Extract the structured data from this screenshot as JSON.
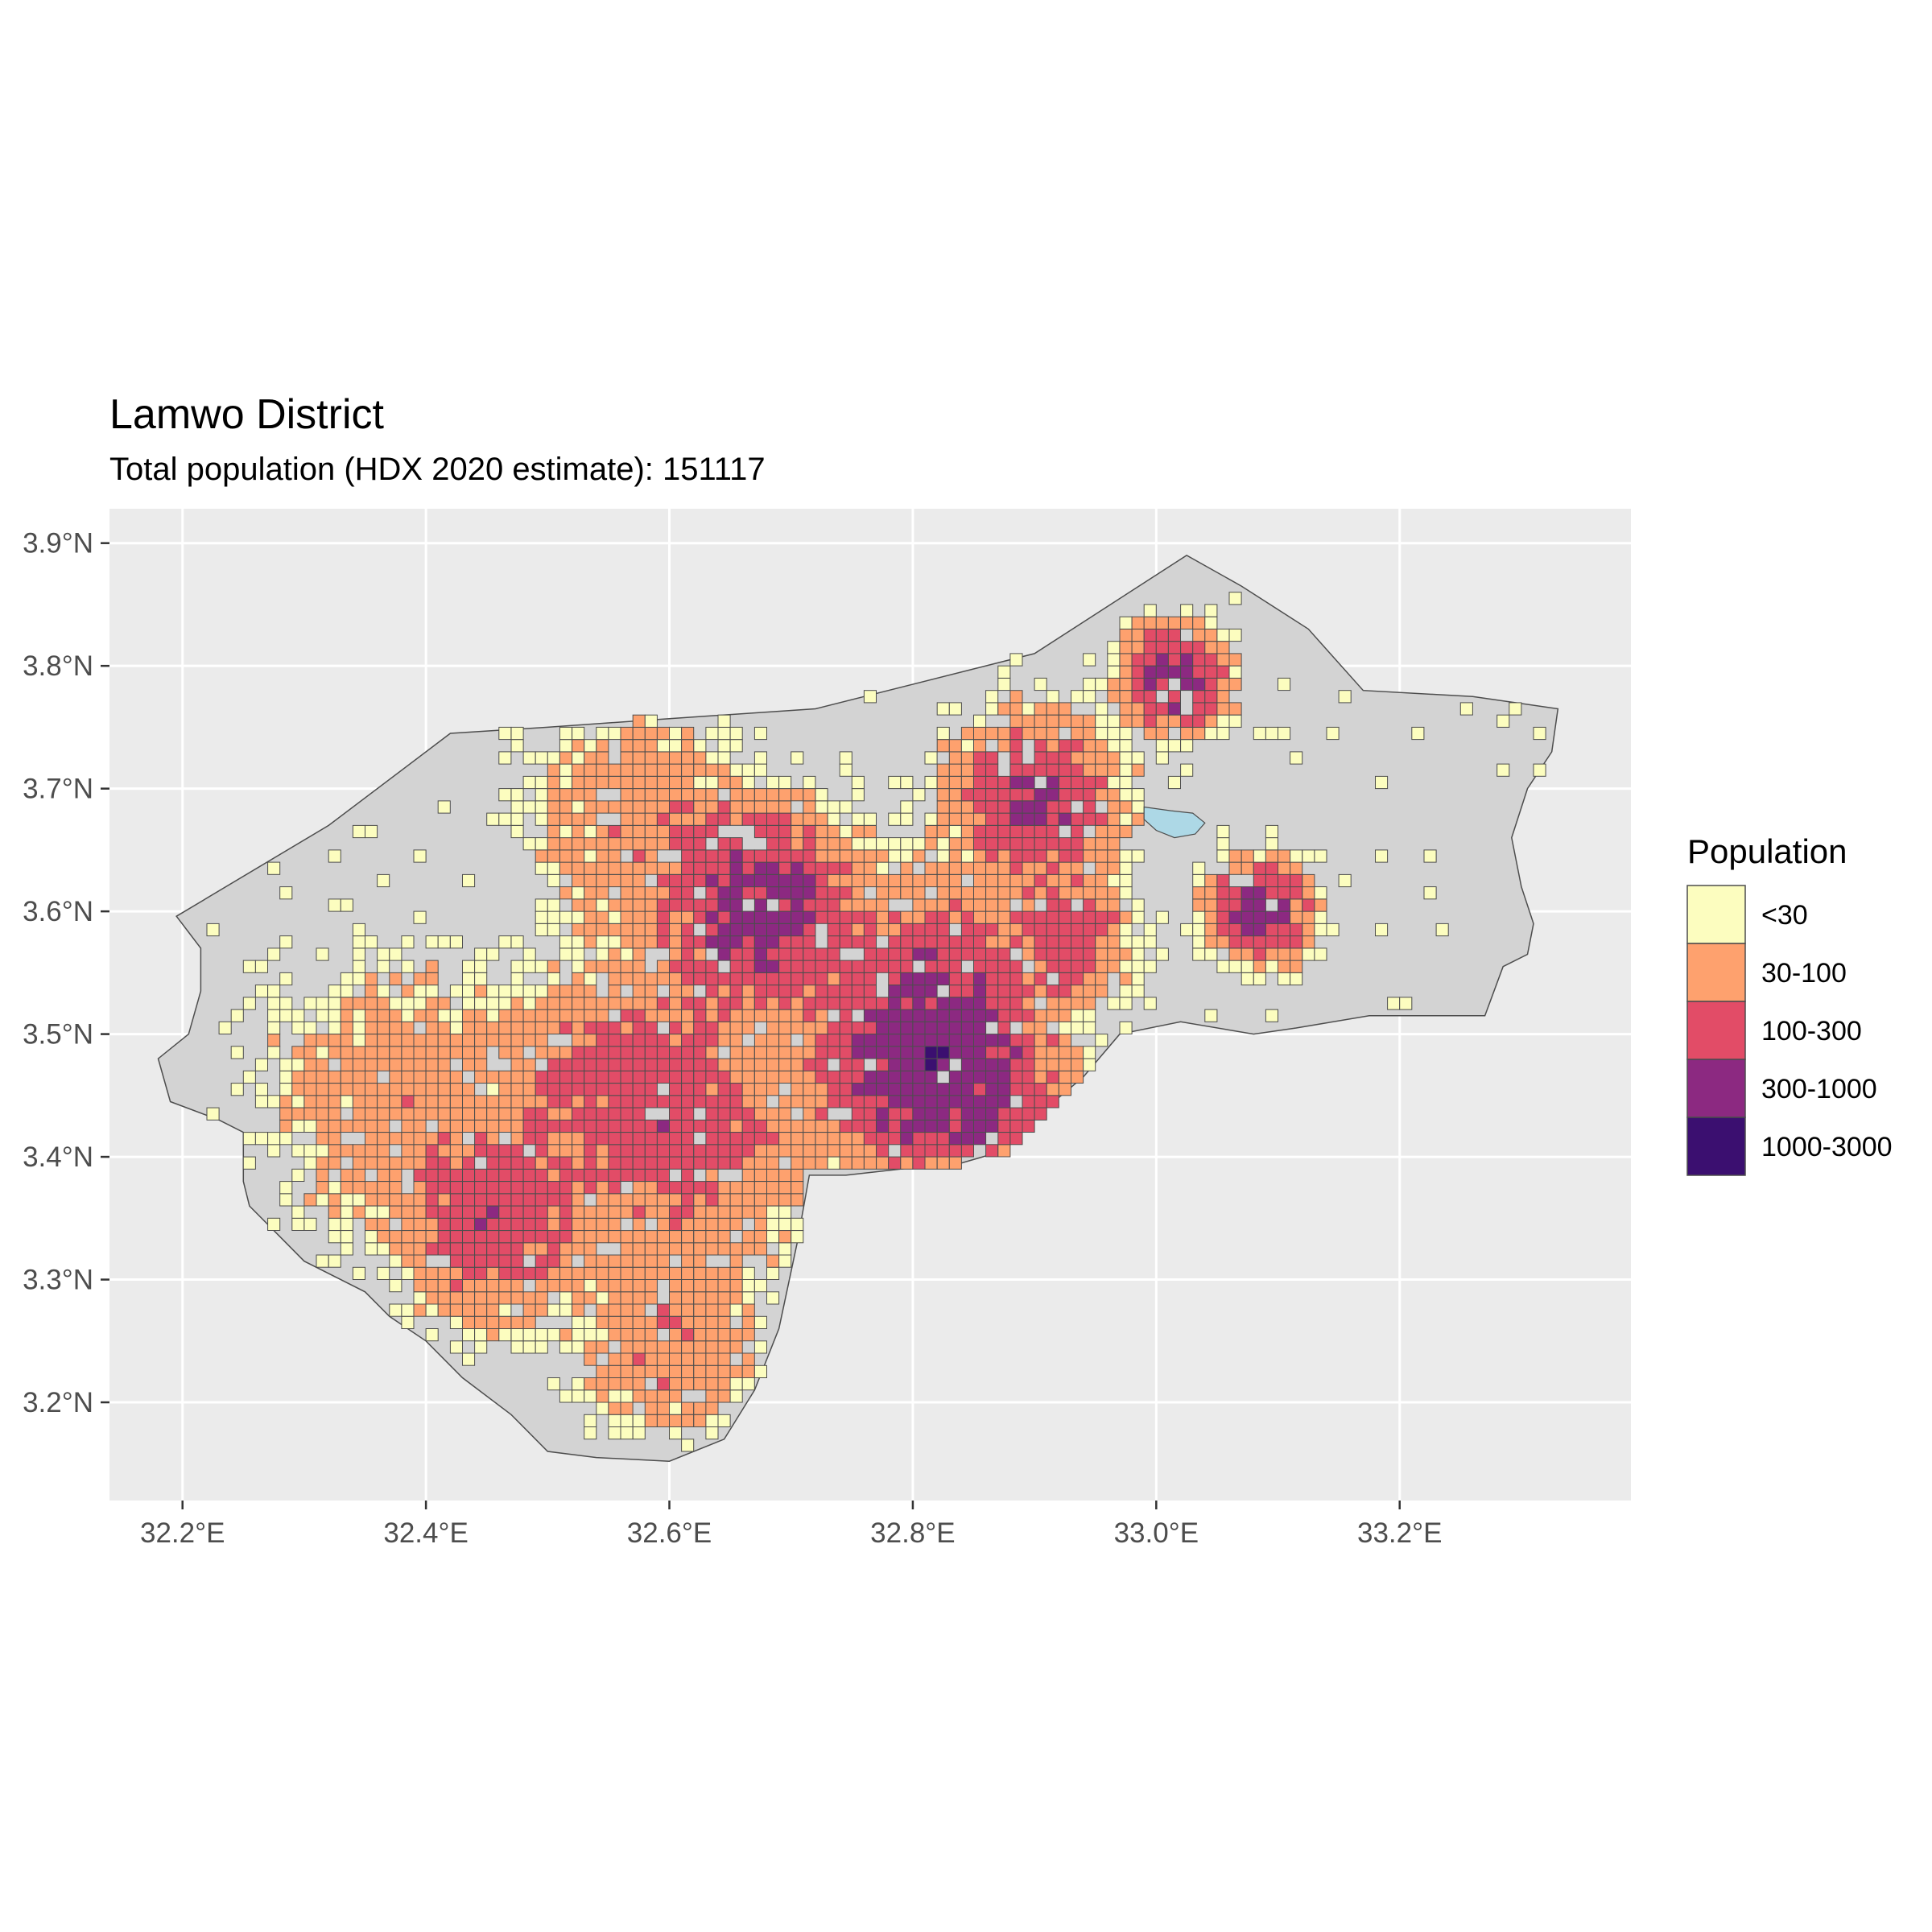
{
  "title": "Lamwo District",
  "subtitle": "Total population (HDX 2020 estimate): 151117",
  "legend": {
    "title": "Population",
    "items": [
      {
        "label": "<30",
        "color": "#FCFDBF"
      },
      {
        "label": "30-100",
        "color": "#FEA16E"
      },
      {
        "label": "100-300",
        "color": "#E24C67"
      },
      {
        "label": "300-1000",
        "color": "#8C2981"
      },
      {
        "label": "1000-3000",
        "color": "#3B0F70"
      }
    ]
  },
  "chart_data": {
    "type": "heatmap",
    "map_type": "gridded population choropleth over district boundary",
    "x_axis": {
      "ticks": [
        32.2,
        32.4,
        32.6,
        32.8,
        33.0,
        33.2
      ],
      "tick_labels": [
        "32.2°E",
        "32.4°E",
        "32.6°E",
        "32.8°E",
        "33.0°E",
        "33.2°E"
      ],
      "range": [
        32.14,
        33.39
      ]
    },
    "y_axis": {
      "ticks": [
        3.2,
        3.3,
        3.4,
        3.5,
        3.6,
        3.7,
        3.8,
        3.9
      ],
      "tick_labels": [
        "3.2°N",
        "3.3°N",
        "3.4°N",
        "3.5°N",
        "3.6°N",
        "3.7°N",
        "3.8°N",
        "3.9°N"
      ],
      "range": [
        3.12,
        3.928
      ]
    },
    "grid": true,
    "legend_position": "right",
    "colors": {
      "panel": "#EBEBEB",
      "gridline": "#FFFFFF",
      "district_fill": "#D3D3D3",
      "district_border": "#4D4D4D",
      "water": "#ADD8E6",
      "cell_border": "#4D4D4D"
    },
    "cell_size_deg": 0.01,
    "boundary": [
      [
        32.195,
        3.596
      ],
      [
        32.32,
        3.67
      ],
      [
        32.42,
        3.745
      ],
      [
        32.5,
        3.75
      ],
      [
        32.6,
        3.757
      ],
      [
        32.72,
        3.765
      ],
      [
        32.9,
        3.81
      ],
      [
        33.025,
        3.89
      ],
      [
        33.07,
        3.865
      ],
      [
        33.125,
        3.83
      ],
      [
        33.17,
        3.78
      ],
      [
        33.26,
        3.775
      ],
      [
        33.33,
        3.765
      ],
      [
        33.325,
        3.73
      ],
      [
        33.305,
        3.7
      ],
      [
        33.292,
        3.66
      ],
      [
        33.3,
        3.62
      ],
      [
        33.31,
        3.59
      ],
      [
        33.305,
        3.565
      ],
      [
        33.285,
        3.555
      ],
      [
        33.27,
        3.515
      ],
      [
        33.175,
        3.515
      ],
      [
        33.115,
        3.505
      ],
      [
        33.08,
        3.5
      ],
      [
        33.02,
        3.51
      ],
      [
        32.97,
        3.5
      ],
      [
        32.94,
        3.465
      ],
      [
        32.91,
        3.44
      ],
      [
        32.875,
        3.405
      ],
      [
        32.84,
        3.395
      ],
      [
        32.79,
        3.39
      ],
      [
        32.745,
        3.385
      ],
      [
        32.715,
        3.385
      ],
      [
        32.705,
        3.33
      ],
      [
        32.69,
        3.26
      ],
      [
        32.67,
        3.21
      ],
      [
        32.645,
        3.17
      ],
      [
        32.6,
        3.152
      ],
      [
        32.54,
        3.155
      ],
      [
        32.5,
        3.16
      ],
      [
        32.47,
        3.19
      ],
      [
        32.43,
        3.22
      ],
      [
        32.4,
        3.25
      ],
      [
        32.37,
        3.27
      ],
      [
        32.35,
        3.29
      ],
      [
        32.3,
        3.315
      ],
      [
        32.28,
        3.335
      ],
      [
        32.255,
        3.36
      ],
      [
        32.25,
        3.38
      ],
      [
        32.25,
        3.42
      ],
      [
        32.23,
        3.43
      ],
      [
        32.19,
        3.445
      ],
      [
        32.18,
        3.48
      ],
      [
        32.205,
        3.5
      ],
      [
        32.215,
        3.535
      ],
      [
        32.215,
        3.57
      ],
      [
        32.195,
        3.596
      ]
    ],
    "water_bodies": [
      [
        [
          32.99,
          3.685
        ],
        [
          33.012,
          3.682
        ],
        [
          33.03,
          3.68
        ],
        [
          33.04,
          3.672
        ],
        [
          33.032,
          3.663
        ],
        [
          33.015,
          3.66
        ],
        [
          33.0,
          3.666
        ],
        [
          32.99,
          3.675
        ],
        [
          32.99,
          3.685
        ]
      ]
    ],
    "hotspots": [
      {
        "lon": 32.46,
        "lat": 3.35,
        "peak": 220,
        "radius": 0.04
      },
      {
        "lon": 32.675,
        "lat": 3.6,
        "peak": 450,
        "radius": 0.04
      },
      {
        "lon": 32.815,
        "lat": 3.48,
        "peak": 700,
        "radius": 0.045
      },
      {
        "lon": 32.565,
        "lat": 3.46,
        "peak": 160,
        "radius": 0.05
      },
      {
        "lon": 32.62,
        "lat": 3.41,
        "peak": 120,
        "radius": 0.05
      },
      {
        "lon": 33.015,
        "lat": 3.79,
        "peak": 600,
        "radius": 0.02
      },
      {
        "lon": 33.085,
        "lat": 3.6,
        "peak": 500,
        "radius": 0.02
      },
      {
        "lon": 32.9,
        "lat": 3.69,
        "peak": 300,
        "radius": 0.035
      },
      {
        "lon": 32.93,
        "lat": 3.58,
        "peak": 200,
        "radius": 0.025
      },
      {
        "lon": 32.6,
        "lat": 3.25,
        "peak": 90,
        "radius": 0.04
      },
      {
        "lon": 32.82,
        "lat": 3.55,
        "peak": 130,
        "radius": 0.04
      },
      {
        "lon": 32.58,
        "lat": 3.67,
        "peak": 70,
        "radius": 0.05
      },
      {
        "lon": 32.38,
        "lat": 3.45,
        "peak": 60,
        "radius": 0.06
      },
      {
        "lon": 32.87,
        "lat": 3.43,
        "peak": 110,
        "radius": 0.035
      }
    ]
  }
}
